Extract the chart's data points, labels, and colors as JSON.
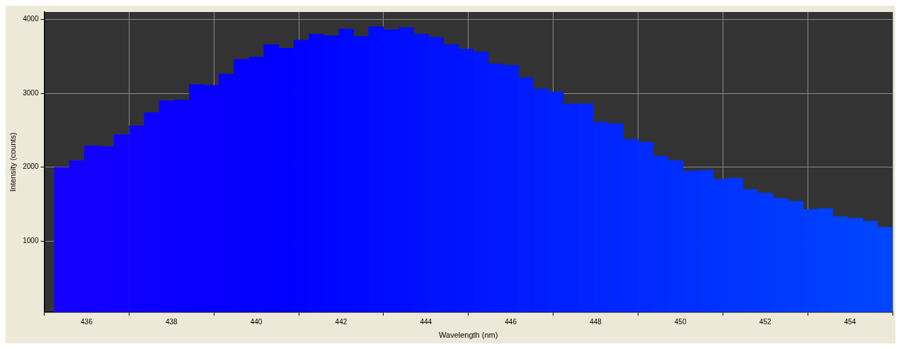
{
  "chart_data": {
    "type": "histogram",
    "xlabel": "Wavelength (nm)",
    "ylabel": "Intensity (counts)",
    "bins": [
      435.24,
      435.59,
      435.95,
      436.3,
      436.65,
      437.0,
      437.36,
      437.71,
      438.06,
      438.42,
      438.77,
      439.12,
      439.47,
      439.83,
      440.18,
      440.53,
      440.89,
      441.24,
      441.59,
      441.95,
      442.3,
      442.65,
      443.0,
      443.36,
      443.71,
      444.06,
      444.42,
      444.77,
      445.12,
      445.47,
      445.83,
      446.18,
      446.53,
      446.89,
      447.24,
      447.59,
      447.94,
      448.3,
      448.65,
      449.0,
      449.36,
      449.71,
      450.06,
      450.42,
      450.77,
      451.12,
      451.47,
      451.83,
      452.18,
      452.53,
      452.89,
      453.24,
      453.59,
      453.94,
      454.3,
      454.65,
      455.0
    ],
    "values": [
      2000,
      2090,
      2290,
      2280,
      2440,
      2560,
      2740,
      2900,
      2910,
      3120,
      3110,
      3260,
      3460,
      3490,
      3660,
      3610,
      3720,
      3800,
      3780,
      3870,
      3770,
      3900,
      3860,
      3890,
      3800,
      3760,
      3660,
      3600,
      3560,
      3400,
      3380,
      3210,
      3060,
      3020,
      2860,
      2860,
      2610,
      2590,
      2380,
      2340,
      2150,
      2090,
      1950,
      1960,
      1840,
      1850,
      1700,
      1650,
      1580,
      1540,
      1430,
      1440,
      1330,
      1310,
      1270,
      1190
    ],
    "colors": [
      "#1400ff",
      "#1300ff",
      "#1100ff",
      "#1000ff",
      "#0f00ff",
      "#0d00ff",
      "#0c00ff",
      "#0b00ff",
      "#0900ff",
      "#0800ff",
      "#0700ff",
      "#0500ff",
      "#0400ff",
      "#0300ff",
      "#0100ff",
      "#0000ff",
      "#0002ff",
      "#0004ff",
      "#0005ff",
      "#0007ff",
      "#0009ff",
      "#000bff",
      "#000cff",
      "#000eff",
      "#0010ff",
      "#0012ff",
      "#0013ff",
      "#0015ff",
      "#0017ff",
      "#0019ff",
      "#001aff",
      "#001cff",
      "#001eff",
      "#0020ff",
      "#0021ff",
      "#0023ff",
      "#0025ff",
      "#0027ff",
      "#0028ff",
      "#002aff",
      "#002cff",
      "#002eff",
      "#002fff",
      "#0031ff",
      "#0033ff",
      "#0035ff",
      "#0036ff",
      "#0038ff",
      "#003aff",
      "#003cff",
      "#003dff",
      "#003fff",
      "#0041ff",
      "#0043ff",
      "#0044ff",
      "#0046ff"
    ],
    "xlim": [
      435,
      455
    ],
    "xticks": [
      436,
      438,
      440,
      442,
      444,
      446,
      448,
      450,
      452,
      454
    ],
    "ylim": [
      40,
      4100
    ],
    "yticks": [
      1000,
      2000,
      3000,
      4000
    ],
    "grid": true,
    "legend": false
  }
}
